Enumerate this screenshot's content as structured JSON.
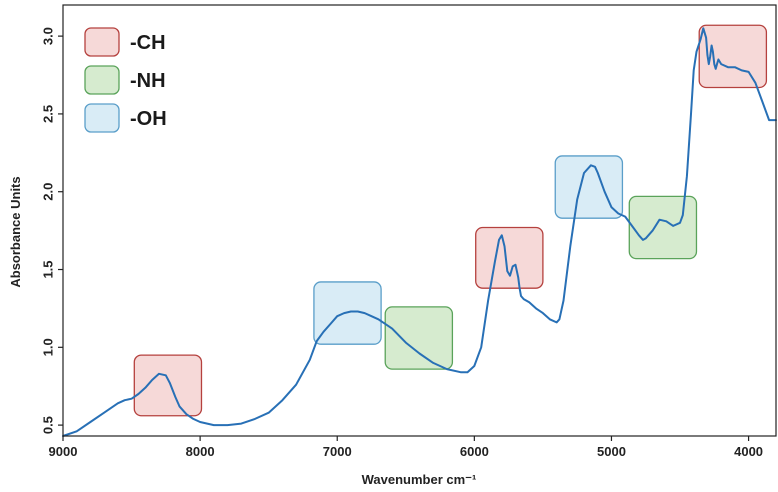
{
  "chart_data": {
    "type": "line",
    "xlabel": "Wavenumber cm⁻¹",
    "ylabel": "Absorbance Units",
    "xlim": [
      9000,
      3800
    ],
    "ylim": [
      0.43,
      3.2
    ],
    "x_reversed": true,
    "x_ticks": [
      9000,
      8000,
      7000,
      6000,
      5000,
      4000
    ],
    "y_ticks": [
      0.5,
      1.0,
      1.5,
      2.0,
      2.5,
      3.0
    ],
    "x_tick_labels": [
      "9000",
      "8000",
      "7000",
      "6000",
      "5000",
      "4000"
    ],
    "y_tick_labels": [
      "0.5",
      "1.0",
      "1.5",
      "2.0",
      "2.5",
      "3.0"
    ],
    "grid": false,
    "line_color": "#2870b6",
    "series": [
      {
        "x": [
          9000,
          8900,
          8800,
          8700,
          8600,
          8550,
          8500,
          8450,
          8400,
          8350,
          8300,
          8250,
          8220,
          8180,
          8150,
          8100,
          8050,
          8000,
          7900,
          7800,
          7700,
          7600,
          7500,
          7400,
          7300,
          7200,
          7150,
          7100,
          7050,
          7000,
          6950,
          6900,
          6850,
          6800,
          6750,
          6700,
          6600,
          6500,
          6400,
          6300,
          6200,
          6100,
          6050,
          6000,
          5950,
          5900,
          5850,
          5820,
          5800,
          5780,
          5760,
          5740,
          5720,
          5700,
          5680,
          5670,
          5660,
          5640,
          5600,
          5550,
          5500,
          5450,
          5400,
          5380,
          5350,
          5300,
          5250,
          5200,
          5150,
          5120,
          5100,
          5050,
          5000,
          4950,
          4900,
          4850,
          4800,
          4770,
          4750,
          4700,
          4650,
          4600,
          4550,
          4500,
          4480,
          4450,
          4420,
          4400,
          4380,
          4350,
          4330,
          4310,
          4300,
          4290,
          4280,
          4270,
          4260,
          4250,
          4240,
          4230,
          4220,
          4200,
          4150,
          4100,
          4050,
          4000,
          3950,
          3900,
          3850,
          3800
        ],
        "y": [
          0.43,
          0.46,
          0.52,
          0.58,
          0.64,
          0.66,
          0.67,
          0.7,
          0.74,
          0.79,
          0.83,
          0.82,
          0.77,
          0.68,
          0.62,
          0.57,
          0.54,
          0.52,
          0.5,
          0.5,
          0.51,
          0.54,
          0.58,
          0.66,
          0.76,
          0.92,
          1.04,
          1.1,
          1.15,
          1.2,
          1.22,
          1.23,
          1.23,
          1.22,
          1.2,
          1.18,
          1.12,
          1.03,
          0.96,
          0.9,
          0.86,
          0.84,
          0.84,
          0.88,
          1.0,
          1.3,
          1.55,
          1.69,
          1.72,
          1.65,
          1.49,
          1.46,
          1.52,
          1.53,
          1.45,
          1.38,
          1.33,
          1.31,
          1.29,
          1.25,
          1.22,
          1.18,
          1.16,
          1.18,
          1.3,
          1.65,
          1.95,
          2.12,
          2.17,
          2.16,
          2.12,
          2.0,
          1.9,
          1.86,
          1.84,
          1.78,
          1.72,
          1.69,
          1.7,
          1.75,
          1.82,
          1.81,
          1.78,
          1.8,
          1.85,
          2.1,
          2.5,
          2.78,
          2.9,
          2.98,
          3.05,
          2.99,
          2.88,
          2.82,
          2.87,
          2.94,
          2.9,
          2.82,
          2.79,
          2.82,
          2.85,
          2.82,
          2.8,
          2.8,
          2.78,
          2.77,
          2.7,
          2.58,
          2.46,
          2.46
        ]
      }
    ],
    "legend": {
      "placement": "top-left",
      "entries": [
        {
          "label": "-CH",
          "fill": "#f6d9d8",
          "stroke": "#b5413e"
        },
        {
          "label": "-NH",
          "fill": "#d6ebcf",
          "stroke": "#5aa35a"
        },
        {
          "label": "-OH",
          "fill": "#d9ecf6",
          "stroke": "#5a9ec9"
        }
      ]
    },
    "highlight_boxes": [
      {
        "group": "-CH",
        "x_range": [
          8480,
          7990
        ],
        "y_range": [
          0.56,
          0.95
        ]
      },
      {
        "group": "-OH",
        "x_range": [
          7170,
          6680
        ],
        "y_range": [
          1.02,
          1.42
        ]
      },
      {
        "group": "-NH",
        "x_range": [
          6650,
          6160
        ],
        "y_range": [
          0.86,
          1.26
        ]
      },
      {
        "group": "-CH",
        "x_range": [
          5990,
          5500
        ],
        "y_range": [
          1.38,
          1.77
        ]
      },
      {
        "group": "-OH",
        "x_range": [
          5410,
          4920
        ],
        "y_range": [
          1.83,
          2.23
        ]
      },
      {
        "group": "-NH",
        "x_range": [
          4870,
          4380
        ],
        "y_range": [
          1.57,
          1.97
        ]
      },
      {
        "group": "-CH",
        "x_range": [
          4360,
          3870
        ],
        "y_range": [
          2.67,
          3.07
        ]
      }
    ]
  }
}
